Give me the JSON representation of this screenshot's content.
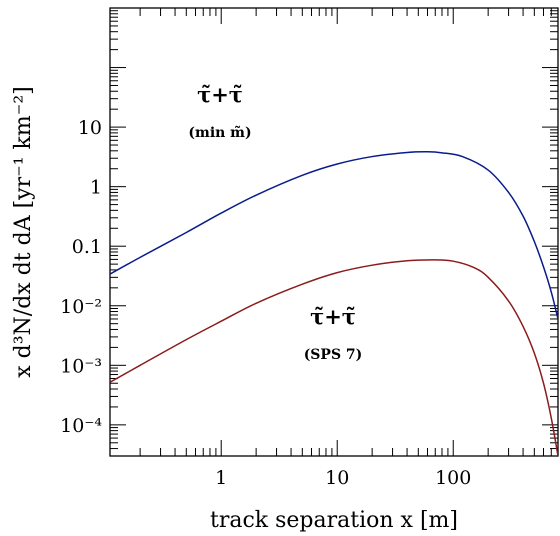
{
  "chart_data": {
    "type": "line",
    "xlabel": "track separation x [m]",
    "ylabel": "x d³N/dx dt dA [yr⁻¹ km⁻²]",
    "xscale": "log",
    "yscale": "log",
    "xlim": [
      0.11,
      800
    ],
    "ylim": [
      3e-05,
      1000
    ],
    "grid": false,
    "x_ticks": [
      {
        "value": 1,
        "label": "1"
      },
      {
        "value": 10,
        "label": "10"
      },
      {
        "value": 100,
        "label": "100"
      }
    ],
    "y_ticks": [
      {
        "value": 0.0001,
        "label": "10⁻⁴"
      },
      {
        "value": 0.001,
        "label": "10⁻³"
      },
      {
        "value": 0.01,
        "label": "10⁻²"
      },
      {
        "value": 0.1,
        "label": "0.1"
      },
      {
        "value": 1,
        "label": "1"
      },
      {
        "value": 10,
        "label": "10"
      }
    ],
    "series": [
      {
        "name": "τ̃+τ̃ (min m̃)",
        "color": "#0a1c8c",
        "x": [
          0.11,
          0.2,
          0.5,
          1,
          2,
          5,
          10,
          20,
          40,
          60,
          80,
          120,
          200,
          300,
          400,
          500,
          600,
          700,
          800
        ],
        "y": [
          0.034,
          0.065,
          0.17,
          0.36,
          0.72,
          1.55,
          2.4,
          3.2,
          3.75,
          3.85,
          3.7,
          3.2,
          1.9,
          0.8,
          0.32,
          0.12,
          0.045,
          0.017,
          0.006
        ]
      },
      {
        "name": "τ̃+τ̃ (SPS 7)",
        "color": "#8b1c1c",
        "x": [
          0.11,
          0.2,
          0.5,
          1,
          2,
          5,
          10,
          20,
          40,
          70,
          100,
          150,
          200,
          300,
          400,
          500,
          600,
          700,
          800
        ],
        "y": [
          0.00052,
          0.001,
          0.0027,
          0.0055,
          0.011,
          0.023,
          0.036,
          0.048,
          0.057,
          0.059,
          0.056,
          0.044,
          0.03,
          0.012,
          0.0045,
          0.0016,
          0.0005,
          0.00013,
          3e-05
        ]
      }
    ],
    "annotations": [
      {
        "text": "τ̃+τ̃",
        "sub": "(min m̃)",
        "color": "#0a1c8c"
      },
      {
        "text": "τ̃+τ̃",
        "sub": "(SPS 7)",
        "color": "#8b1c1c"
      }
    ]
  }
}
